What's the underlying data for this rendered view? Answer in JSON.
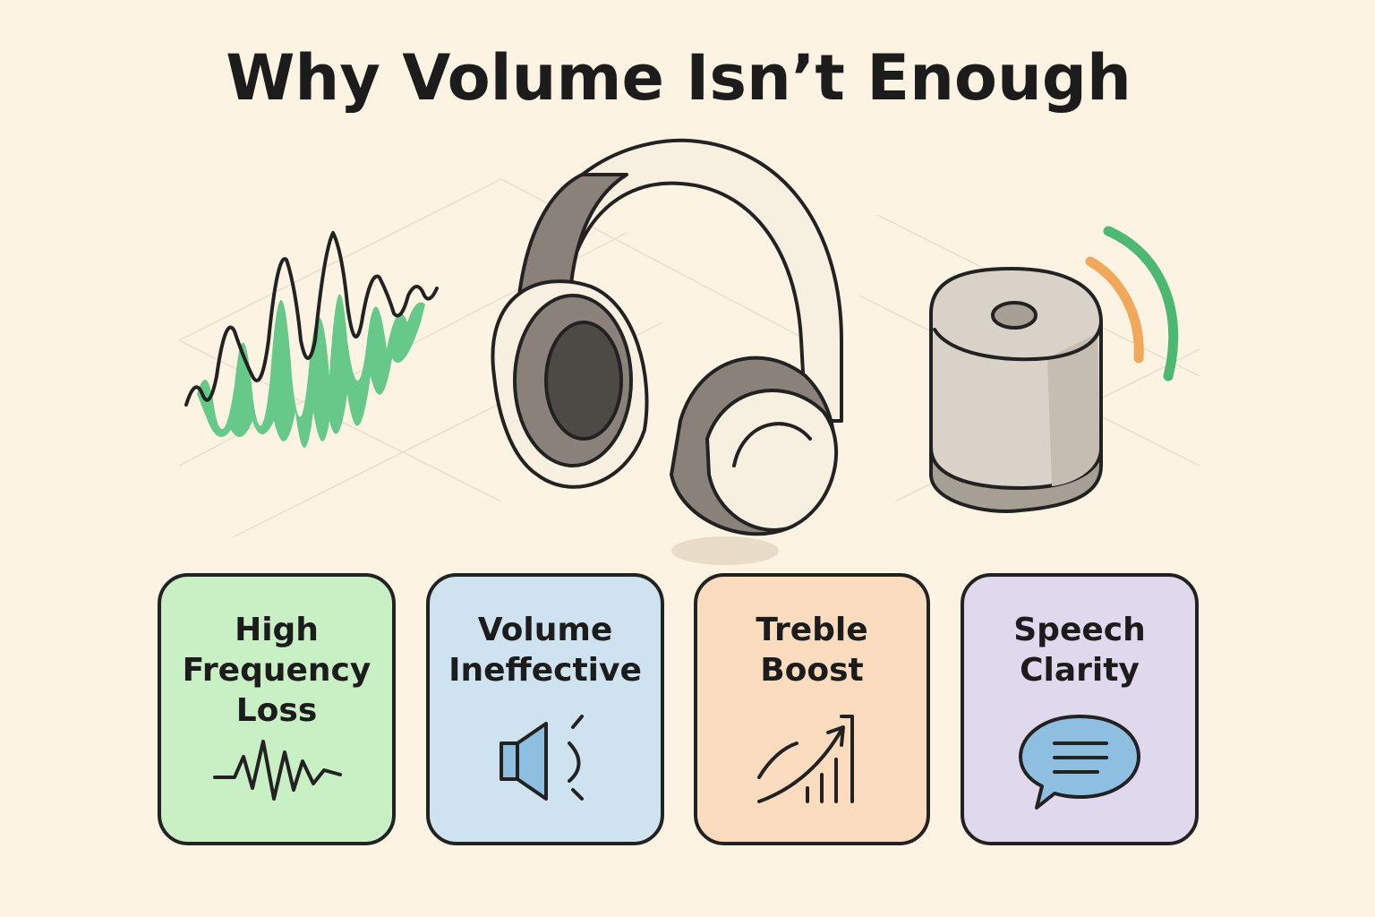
{
  "title": "Why Volume Isn’t Enough",
  "cards": [
    {
      "lines": [
        "High",
        "Frequency",
        "Loss"
      ]
    },
    {
      "lines": [
        "Volume",
        "Ineffective"
      ]
    },
    {
      "lines": [
        "Treble",
        "Boost"
      ]
    },
    {
      "lines": [
        "Speech",
        "Clarity"
      ]
    }
  ]
}
